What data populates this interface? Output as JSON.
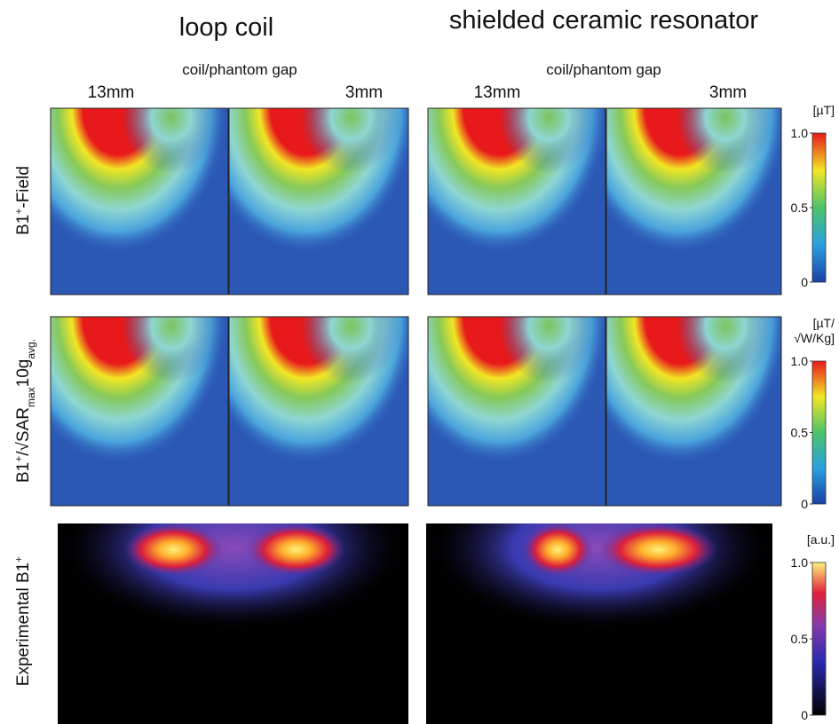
{
  "columns": [
    {
      "title": "loop coil",
      "gap_label": "coil/phantom gap",
      "gaps": [
        "13mm",
        "3mm"
      ]
    },
    {
      "title": "shielded ceramic resonator",
      "gap_label": "coil/phantom gap",
      "gaps": [
        "13mm",
        "3mm"
      ]
    }
  ],
  "rows": [
    {
      "label": [
        {
          "text": "B1"
        },
        {
          "text": "+",
          "style": "sup"
        },
        {
          "text": "-Field"
        }
      ],
      "colorbar": {
        "colormap": "jet",
        "units": [
          "[µT]"
        ],
        "ticks": [
          {
            "value": 1,
            "label": "1.0"
          },
          {
            "value": 0.5,
            "label": "0.5"
          },
          0
        ]
      }
    },
    {
      "label": [
        {
          "text": "B1"
        },
        {
          "text": "+",
          "style": "sup"
        },
        {
          "text": "/√SAR"
        },
        {
          "text": "max",
          "style": "sub"
        },
        {
          "text": "10g"
        },
        {
          "text": "avg.",
          "style": "sub"
        }
      ],
      "colorbar": {
        "colormap": "jet",
        "units": [
          "[µT/",
          "√W/Kg]"
        ],
        "ticks": [
          {
            "value": 1,
            "label": "1.0"
          },
          {
            "value": 0.5,
            "label": "0.5"
          },
          0
        ]
      }
    },
    {
      "label": [
        {
          "text": "Experimental B1"
        },
        {
          "text": "+",
          "style": "sup"
        }
      ],
      "colorbar": {
        "colormap": "hot",
        "units": [
          "[a.u.]"
        ],
        "ticks": [
          {
            "value": 1,
            "label": "1.0"
          },
          {
            "value": 0.5,
            "label": "0.5"
          },
          0
        ]
      }
    }
  ]
}
